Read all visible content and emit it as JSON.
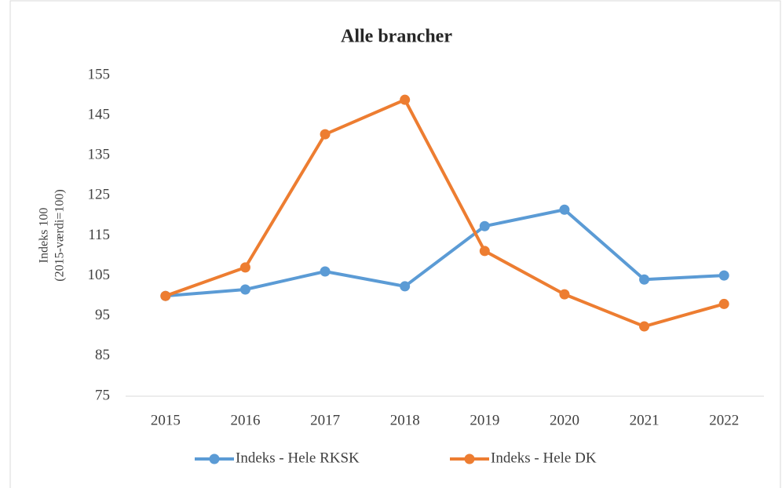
{
  "chart_data": {
    "type": "line",
    "title": "Alle brancher",
    "y_label": [
      "Indeks 100",
      "(2015-værdi=100)"
    ],
    "categories": [
      "2015",
      "2016",
      "2017",
      "2018",
      "2019",
      "2020",
      "2021",
      "2022"
    ],
    "series": [
      {
        "name": "Indeks - Hele RKSK",
        "color": "#5b9bd5",
        "values": [
          100,
          101.6,
          106.1,
          102.4,
          117.4,
          121.5,
          104.1,
          105.1
        ]
      },
      {
        "name": "Indeks - Hele DK",
        "color": "#ed7d31",
        "values": [
          100,
          107.1,
          140.3,
          148.9,
          111.2,
          100.4,
          92.4,
          98.0
        ]
      }
    ],
    "ylim": [
      75,
      155
    ],
    "yticks": [
      75,
      85,
      95,
      105,
      115,
      125,
      135,
      145,
      155
    ],
    "grid": false,
    "legend": "bottom"
  }
}
